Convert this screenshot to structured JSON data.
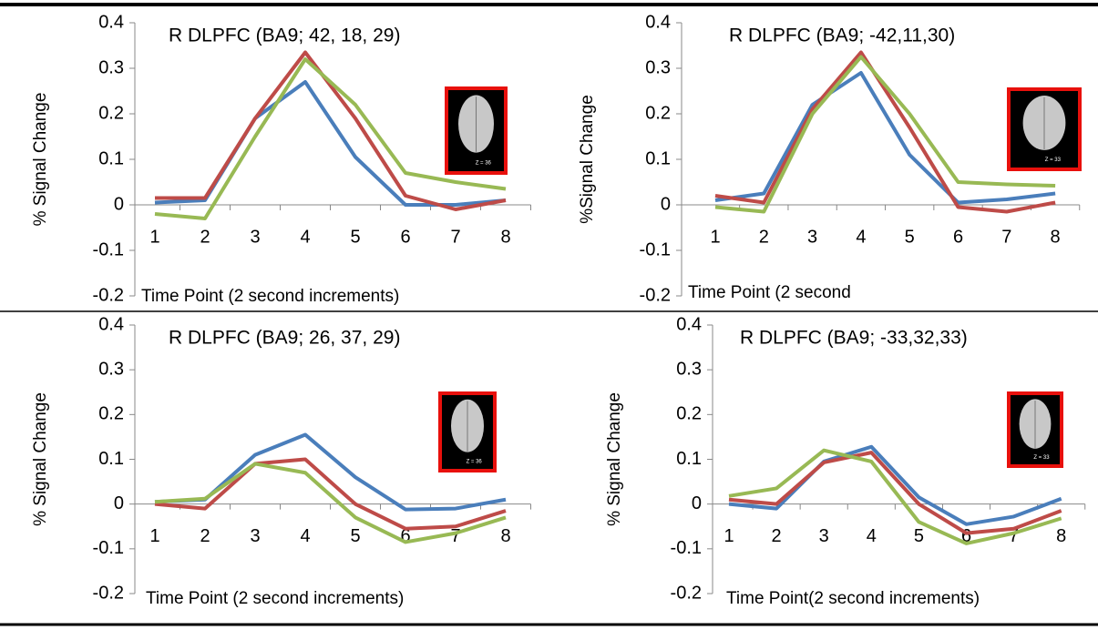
{
  "chart_data": [
    {
      "type": "line",
      "title": "R DLPFC (BA9; 42, 18, 29)",
      "y_label": "% Signal Change",
      "x_label": "Time Point (2 second increments)",
      "annotation": "Z = 36",
      "categories": [
        "1",
        "2",
        "3",
        "4",
        "5",
        "6",
        "7",
        "8"
      ],
      "ylim": [
        -0.2,
        0.4
      ],
      "yticks": [
        -0.2,
        -0.1,
        0,
        0.1,
        0.2,
        0.3,
        0.4
      ],
      "series": [
        {
          "color": "#4a7ebb",
          "values": [
            0.005,
            0.01,
            0.19,
            0.27,
            0.105,
            0,
            0,
            0.01
          ]
        },
        {
          "color": "#be4b48",
          "values": [
            0.015,
            0.015,
            0.19,
            0.335,
            0.19,
            0.02,
            -0.01,
            0.01
          ]
        },
        {
          "color": "#98b954",
          "values": [
            -0.02,
            -0.03,
            0.15,
            0.32,
            0.22,
            0.07,
            0.05,
            0.035
          ]
        }
      ]
    },
    {
      "type": "line",
      "title": "R DLPFC (BA9; -42,11,30)",
      "y_label": "%Signal Change",
      "x_label": "Time Point (2 second",
      "annotation": "Z = 33",
      "categories": [
        "1",
        "2",
        "3",
        "4",
        "5",
        "6",
        "7",
        "8"
      ],
      "ylim": [
        -0.2,
        0.4
      ],
      "yticks": [
        -0.2,
        -0.1,
        0,
        0.1,
        0.2,
        0.3,
        0.4
      ],
      "series": [
        {
          "color": "#4a7ebb",
          "values": [
            0.01,
            0.025,
            0.22,
            0.29,
            0.11,
            0.005,
            0.012,
            0.025
          ]
        },
        {
          "color": "#be4b48",
          "values": [
            0.02,
            0.005,
            0.21,
            0.335,
            0.17,
            -0.005,
            -0.015,
            0.005
          ]
        },
        {
          "color": "#98b954",
          "values": [
            -0.005,
            -0.015,
            0.2,
            0.325,
            0.2,
            0.05,
            0.045,
            0.042
          ]
        }
      ]
    },
    {
      "type": "line",
      "title": "R DLPFC (BA9; 26, 37, 29)",
      "y_label": "% Signal Change",
      "x_label": "Time Point (2 second increments)",
      "annotation": "Z = 36",
      "categories": [
        "1",
        "2",
        "3",
        "4",
        "5",
        "6",
        "7",
        "8"
      ],
      "ylim": [
        -0.2,
        0.4
      ],
      "yticks": [
        -0.2,
        -0.1,
        0,
        0.1,
        0.2,
        0.3,
        0.4
      ],
      "series": [
        {
          "color": "#4a7ebb",
          "values": [
            0.005,
            0.01,
            0.11,
            0.155,
            0.06,
            -0.012,
            -0.01,
            0.01
          ]
        },
        {
          "color": "#be4b48",
          "values": [
            0,
            -0.01,
            0.09,
            0.1,
            0,
            -0.055,
            -0.05,
            -0.015
          ]
        },
        {
          "color": "#98b954",
          "values": [
            0.005,
            0.012,
            0.09,
            0.07,
            -0.03,
            -0.085,
            -0.065,
            -0.03
          ]
        }
      ]
    },
    {
      "type": "line",
      "title": "R DLPFC (BA9; -33,32,33)",
      "y_label": "% Signal Change",
      "x_label": "Time Point(2 second increments)",
      "annotation": "Z = 33",
      "categories": [
        "1",
        "2",
        "3",
        "4",
        "5",
        "6",
        "7",
        "8"
      ],
      "ylim": [
        -0.2,
        0.4
      ],
      "yticks": [
        -0.2,
        -0.1,
        0,
        0.1,
        0.2,
        0.3,
        0.4
      ],
      "series": [
        {
          "color": "#4a7ebb",
          "values": [
            0,
            -0.01,
            0.095,
            0.128,
            0.015,
            -0.045,
            -0.028,
            0.012
          ]
        },
        {
          "color": "#be4b48",
          "values": [
            0.01,
            0,
            0.093,
            0.115,
            0,
            -0.065,
            -0.055,
            -0.015
          ]
        },
        {
          "color": "#98b954",
          "values": [
            0.018,
            0.035,
            0.12,
            0.095,
            -0.04,
            -0.088,
            -0.065,
            -0.032
          ]
        }
      ]
    }
  ]
}
